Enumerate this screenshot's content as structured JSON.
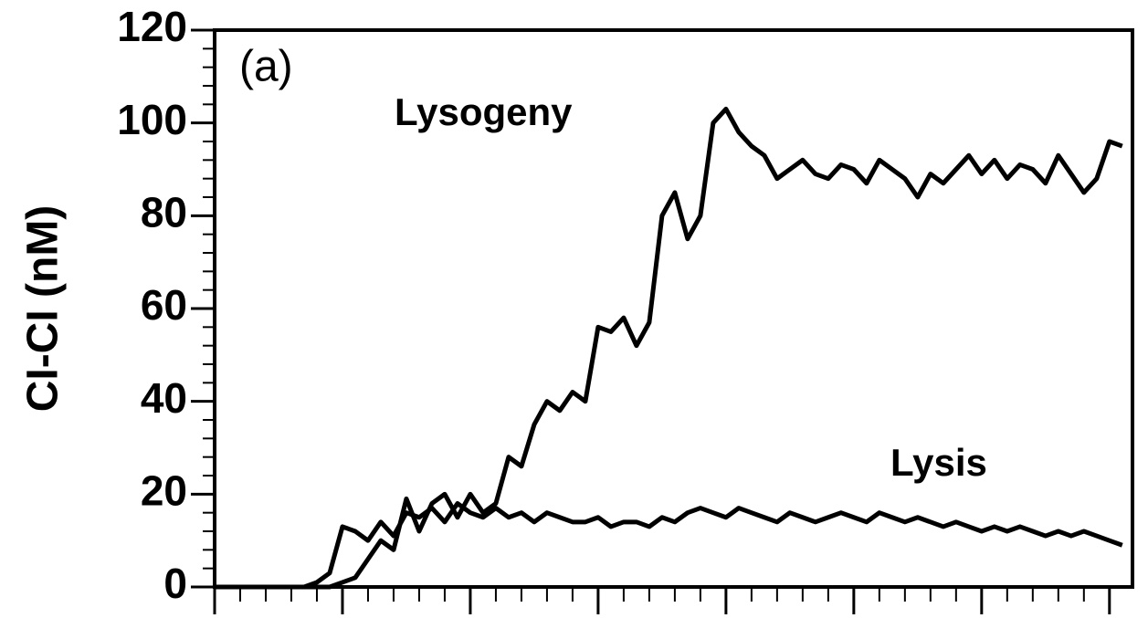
{
  "chart_data": {
    "type": "line",
    "ylabel": "CI-CI (nM)",
    "annotations": [
      "(a)",
      "Lysogeny",
      "Lysis"
    ],
    "x": [
      0,
      0.1,
      0.2,
      0.3,
      0.4,
      0.5,
      0.6,
      0.7,
      0.8,
      0.9,
      1,
      1.1,
      1.2,
      1.3,
      1.4,
      1.5,
      1.6,
      1.7,
      1.8,
      1.9,
      2,
      2.1,
      2.2,
      2.3,
      2.4,
      2.5,
      2.6,
      2.7,
      2.8,
      2.9,
      3,
      3.1,
      3.2,
      3.3,
      3.4,
      3.5,
      3.6,
      3.7,
      3.8,
      3.9,
      4,
      4.1,
      4.2,
      4.3,
      4.4,
      4.5,
      4.6,
      4.7,
      4.8,
      4.9,
      5,
      5.1,
      5.2,
      5.3,
      5.4,
      5.5,
      5.6,
      5.7,
      5.8,
      5.9,
      6,
      6.1,
      6.2,
      6.3,
      6.4,
      6.5,
      6.6,
      6.7,
      6.8,
      6.9,
      7,
      7.1
    ],
    "series": [
      {
        "name": "Lysogeny",
        "color": "#000000",
        "values": [
          0,
          0,
          0,
          0,
          0,
          0,
          0,
          0,
          0,
          0,
          1,
          2,
          6,
          10,
          8,
          19,
          12,
          18,
          20,
          15,
          20,
          16,
          18,
          28,
          26,
          35,
          40,
          38,
          42,
          40,
          56,
          55,
          58,
          52,
          57,
          80,
          85,
          75,
          80,
          100,
          103,
          98,
          95,
          93,
          88,
          90,
          92,
          89,
          88,
          91,
          90,
          87,
          92,
          90,
          88,
          84,
          89,
          87,
          90,
          93,
          89,
          92,
          88,
          91,
          90,
          87,
          93,
          89,
          85,
          88,
          96,
          95
        ]
      },
      {
        "name": "Lysis",
        "color": "#000000",
        "values": [
          0,
          0,
          0,
          0,
          0,
          0,
          0,
          0,
          1,
          3,
          13,
          12,
          10,
          14,
          11,
          16,
          15,
          17,
          14,
          18,
          16,
          15,
          17,
          15,
          16,
          14,
          16,
          15,
          14,
          14,
          15,
          13,
          14,
          14,
          13,
          15,
          14,
          16,
          17,
          16,
          15,
          17,
          16,
          15,
          14,
          16,
          15,
          14,
          15,
          16,
          15,
          14,
          16,
          15,
          14,
          15,
          14,
          13,
          14,
          13,
          12,
          13,
          12,
          13,
          12,
          11,
          12,
          11,
          12,
          11,
          10,
          9
        ]
      }
    ],
    "xlim": [
      0,
      7.18
    ],
    "xticks": [
      0,
      1,
      2,
      3,
      4,
      5,
      6,
      7
    ],
    "ylim": [
      0,
      120
    ],
    "yticks": [
      0,
      20,
      40,
      60,
      80,
      100,
      120
    ]
  }
}
